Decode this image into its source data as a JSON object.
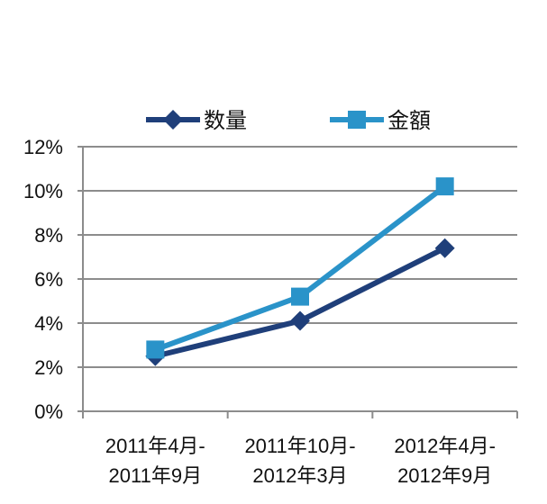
{
  "chart_data": {
    "type": "line",
    "title": "",
    "xlabel": "",
    "ylabel": "",
    "categories": [
      [
        "2011年4月-",
        "2011年9月"
      ],
      [
        "2011年10月-",
        "2012年3月"
      ],
      [
        "2012年4月-",
        "2012年9月"
      ]
    ],
    "series": [
      {
        "name": "数量",
        "values": [
          2.5,
          4.1,
          7.4
        ],
        "color": "#1f3f7a",
        "marker": "diamond"
      },
      {
        "name": "金額",
        "values": [
          2.8,
          5.2,
          10.2
        ],
        "color": "#2a93c9",
        "marker": "square"
      }
    ],
    "ylim": [
      0,
      12
    ],
    "yticks": [
      "0%",
      "2%",
      "4%",
      "6%",
      "8%",
      "10%",
      "12%"
    ],
    "ytick_values": [
      0,
      2,
      4,
      6,
      8,
      10,
      12
    ],
    "grid": true,
    "legend_position": "top"
  }
}
